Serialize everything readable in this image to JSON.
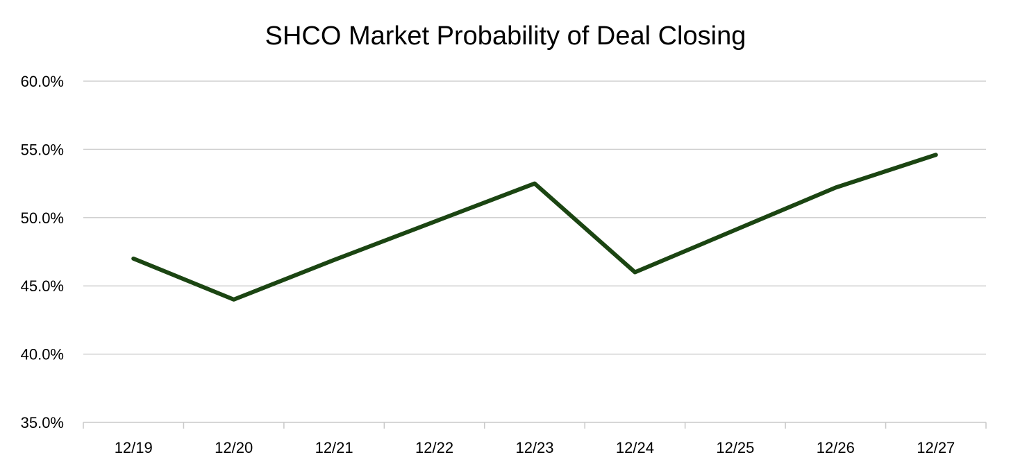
{
  "chart_data": {
    "type": "line",
    "title": "SHCO Market Probability of Deal Closing",
    "xlabel": "",
    "ylabel": "",
    "categories": [
      "12/19",
      "12/20",
      "12/21",
      "12/22",
      "12/23",
      "12/24",
      "12/25",
      "12/26",
      "12/27"
    ],
    "series": [
      {
        "values": [
          47.0,
          44.0,
          46.9,
          49.7,
          52.5,
          46.0,
          49.1,
          52.2,
          54.6
        ],
        "color": "#1b4512"
      }
    ],
    "ylim": [
      35.0,
      60.0
    ],
    "yticks": [
      35.0,
      40.0,
      45.0,
      50.0,
      55.0,
      60.0
    ],
    "ytick_labels": [
      "35.0%",
      "40.0%",
      "45.0%",
      "50.0%",
      "55.0%",
      "60.0%"
    ],
    "grid": true,
    "grid_color": "#d0d0d0",
    "axis_color": "#c8c8c8",
    "legend": "none"
  }
}
